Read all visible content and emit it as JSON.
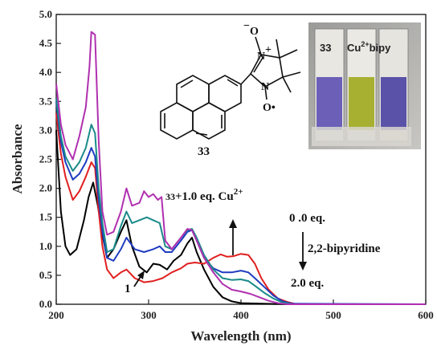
{
  "chart_data": {
    "type": "line",
    "xlabel": "Wavelength (nm)",
    "ylabel": "Absorbance",
    "xlim": [
      200,
      600
    ],
    "ylim": [
      0,
      5.0
    ],
    "x_ticks": [
      "200",
      "300",
      "400",
      "500",
      "600"
    ],
    "y_ticks": [
      "0.0",
      "0.5",
      "1.0",
      "1.5",
      "2.0",
      "2.5",
      "3.0",
      "3.5",
      "4.0",
      "4.5",
      "5.0"
    ],
    "series": [
      {
        "color": "#000000",
        "points": [
          [
            200,
            3.0
          ],
          [
            205,
            1.6
          ],
          [
            210,
            1.0
          ],
          [
            215,
            0.85
          ],
          [
            222,
            0.95
          ],
          [
            230,
            1.45
          ],
          [
            235,
            1.85
          ],
          [
            240,
            2.1
          ],
          [
            245,
            1.7
          ],
          [
            250,
            1.2
          ],
          [
            255,
            0.8
          ],
          [
            262,
            0.95
          ],
          [
            270,
            1.25
          ],
          [
            276,
            1.45
          ],
          [
            282,
            1.0
          ],
          [
            290,
            0.65
          ],
          [
            298,
            0.55
          ],
          [
            305,
            0.7
          ],
          [
            312,
            0.68
          ],
          [
            320,
            0.6
          ],
          [
            327,
            0.75
          ],
          [
            335,
            0.85
          ],
          [
            342,
            1.05
          ],
          [
            347,
            1.15
          ],
          [
            352,
            0.9
          ],
          [
            360,
            0.6
          ],
          [
            370,
            0.3
          ],
          [
            380,
            0.12
          ],
          [
            390,
            0.05
          ],
          [
            400,
            0.02
          ],
          [
            450,
            0.0
          ],
          [
            600,
            0.0
          ]
        ]
      },
      {
        "color": "#e02020",
        "points": [
          [
            200,
            3.3
          ],
          [
            205,
            2.6
          ],
          [
            210,
            2.2
          ],
          [
            218,
            1.8
          ],
          [
            225,
            1.95
          ],
          [
            232,
            2.2
          ],
          [
            238,
            2.45
          ],
          [
            242,
            2.35
          ],
          [
            246,
            1.6
          ],
          [
            250,
            1.0
          ],
          [
            255,
            0.6
          ],
          [
            262,
            0.45
          ],
          [
            270,
            0.55
          ],
          [
            276,
            0.6
          ],
          [
            285,
            0.45
          ],
          [
            295,
            0.38
          ],
          [
            305,
            0.4
          ],
          [
            315,
            0.45
          ],
          [
            325,
            0.55
          ],
          [
            335,
            0.62
          ],
          [
            342,
            0.7
          ],
          [
            350,
            0.72
          ],
          [
            360,
            0.7
          ],
          [
            370,
            0.8
          ],
          [
            378,
            0.86
          ],
          [
            385,
            0.82
          ],
          [
            392,
            0.83
          ],
          [
            400,
            0.87
          ],
          [
            408,
            0.85
          ],
          [
            415,
            0.7
          ],
          [
            422,
            0.45
          ],
          [
            430,
            0.25
          ],
          [
            440,
            0.1
          ],
          [
            450,
            0.04
          ],
          [
            460,
            0.0
          ],
          [
            600,
            0.0
          ]
        ]
      },
      {
        "color": "#1f3cc0",
        "points": [
          [
            200,
            3.5
          ],
          [
            205,
            2.8
          ],
          [
            210,
            2.45
          ],
          [
            218,
            2.15
          ],
          [
            225,
            2.25
          ],
          [
            232,
            2.45
          ],
          [
            238,
            2.7
          ],
          [
            242,
            2.55
          ],
          [
            246,
            1.8
          ],
          [
            250,
            1.25
          ],
          [
            255,
            0.8
          ],
          [
            262,
            0.75
          ],
          [
            270,
            0.95
          ],
          [
            276,
            1.15
          ],
          [
            285,
            0.95
          ],
          [
            295,
            0.9
          ],
          [
            305,
            0.95
          ],
          [
            312,
            1.0
          ],
          [
            318,
            0.9
          ],
          [
            325,
            0.9
          ],
          [
            335,
            1.1
          ],
          [
            342,
            1.25
          ],
          [
            347,
            1.28
          ],
          [
            352,
            1.1
          ],
          [
            360,
            0.8
          ],
          [
            370,
            0.62
          ],
          [
            380,
            0.55
          ],
          [
            390,
            0.55
          ],
          [
            400,
            0.58
          ],
          [
            408,
            0.55
          ],
          [
            415,
            0.45
          ],
          [
            425,
            0.3
          ],
          [
            435,
            0.15
          ],
          [
            445,
            0.05
          ],
          [
            455,
            0.01
          ],
          [
            600,
            0.0
          ]
        ]
      },
      {
        "color": "#1a8a8a",
        "points": [
          [
            200,
            3.55
          ],
          [
            205,
            2.9
          ],
          [
            210,
            2.55
          ],
          [
            218,
            2.3
          ],
          [
            225,
            2.45
          ],
          [
            232,
            2.7
          ],
          [
            238,
            3.1
          ],
          [
            242,
            2.95
          ],
          [
            246,
            2.0
          ],
          [
            250,
            1.4
          ],
          [
            255,
            0.9
          ],
          [
            262,
            0.95
          ],
          [
            270,
            1.35
          ],
          [
            276,
            1.6
          ],
          [
            282,
            1.4
          ],
          [
            290,
            1.45
          ],
          [
            298,
            1.5
          ],
          [
            305,
            1.45
          ],
          [
            312,
            1.4
          ],
          [
            318,
            1.0
          ],
          [
            325,
            0.95
          ],
          [
            335,
            1.15
          ],
          [
            342,
            1.28
          ],
          [
            347,
            1.3
          ],
          [
            352,
            1.15
          ],
          [
            360,
            0.85
          ],
          [
            370,
            0.6
          ],
          [
            380,
            0.45
          ],
          [
            390,
            0.42
          ],
          [
            400,
            0.43
          ],
          [
            408,
            0.4
          ],
          [
            415,
            0.32
          ],
          [
            425,
            0.2
          ],
          [
            435,
            0.1
          ],
          [
            445,
            0.03
          ],
          [
            455,
            0.0
          ],
          [
            600,
            0.0
          ]
        ]
      },
      {
        "color": "#b030b0",
        "points": [
          [
            200,
            3.8
          ],
          [
            205,
            3.1
          ],
          [
            210,
            2.75
          ],
          [
            218,
            2.5
          ],
          [
            225,
            2.9
          ],
          [
            232,
            3.4
          ],
          [
            236,
            4.1
          ],
          [
            238,
            4.7
          ],
          [
            242,
            4.65
          ],
          [
            246,
            2.8
          ],
          [
            250,
            1.6
          ],
          [
            255,
            1.2
          ],
          [
            262,
            1.25
          ],
          [
            270,
            1.6
          ],
          [
            276,
            2.0
          ],
          [
            282,
            1.7
          ],
          [
            290,
            1.75
          ],
          [
            295,
            1.95
          ],
          [
            300,
            1.85
          ],
          [
            305,
            1.9
          ],
          [
            310,
            1.8
          ],
          [
            314,
            1.85
          ],
          [
            318,
            1.1
          ],
          [
            325,
            0.95
          ],
          [
            335,
            1.15
          ],
          [
            342,
            1.3
          ],
          [
            347,
            1.28
          ],
          [
            352,
            1.1
          ],
          [
            360,
            0.8
          ],
          [
            370,
            0.55
          ],
          [
            380,
            0.35
          ],
          [
            390,
            0.25
          ],
          [
            400,
            0.22
          ],
          [
            410,
            0.18
          ],
          [
            420,
            0.12
          ],
          [
            430,
            0.06
          ],
          [
            440,
            0.02
          ],
          [
            450,
            0.0
          ],
          [
            600,
            0.0
          ]
        ]
      }
    ],
    "annotations": {
      "label_1": "1",
      "label_eq": "+1.0 eq. Cu",
      "label_33_prefix": "33",
      "label_cu_sup": "2+",
      "label_zero": "0 .0 eq.",
      "label_bipy": "2,2-bipyridine",
      "label_two": "2.0 eq."
    },
    "inset": {
      "photo_label_33": "33",
      "photo_label_cu": "Cu",
      "photo_label_cu_sup": "2+",
      "photo_label_bipy": "bipy",
      "molecule_label": "33",
      "molecule_n_oxide": "O",
      "molecule_o_radical": "O•",
      "molecule_n": "N",
      "molecule_plus": "+",
      "molecule_minus": "−"
    }
  }
}
